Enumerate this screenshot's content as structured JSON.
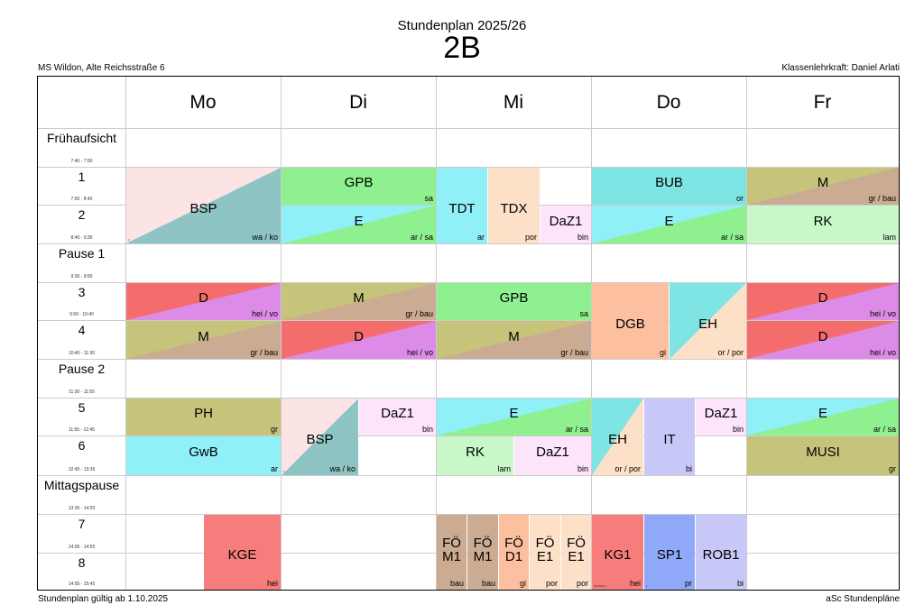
{
  "header": {
    "title_small": "Stundenplan 2025/26",
    "title_big": "2B",
    "school": "MS Wildon, Alte Reichsstraße 6",
    "teacher": "Klassenlehrkraft: Daniel Arlati"
  },
  "footer": {
    "left": "Stundenplan gültig ab 1.10.2025",
    "right": "aSc Stundenpläne"
  },
  "days": [
    "Mo",
    "Di",
    "Mi",
    "Do",
    "Fr"
  ],
  "rows": [
    {
      "label": "Frühaufsicht",
      "time": "7:40 - 7:50"
    },
    {
      "label": "1",
      "time": "7:50 - 8:40"
    },
    {
      "label": "2",
      "time": "8:40 - 9:30"
    },
    {
      "label": "Pause 1",
      "time": "9:30 - 9:50"
    },
    {
      "label": "3",
      "time": "9:50 - 10:40"
    },
    {
      "label": "4",
      "time": "10:40 - 11:30"
    },
    {
      "label": "Pause 2",
      "time": "11:30 - 11:55"
    },
    {
      "label": "5",
      "time": "11:55 - 12:45"
    },
    {
      "label": "6",
      "time": "12:45 - 13:35"
    },
    {
      "label": "Mittagspause",
      "time": "13:35 - 14:20"
    },
    {
      "label": "7",
      "time": "14:05 - 14:55"
    },
    {
      "label": "8",
      "time": "14:55 - 15:45"
    }
  ],
  "lessons": {
    "mo_bsp": {
      "subject": "BSP",
      "teacher": "wa / ko",
      "tiny": "1",
      "colors": [
        "#fce4e4",
        "#8fc4c4"
      ]
    },
    "mo_d3": {
      "subject": "D",
      "teacher": "hei / vo",
      "colors": [
        "#f56c6c",
        "#dc8ce6"
      ]
    },
    "mo_m4": {
      "subject": "M",
      "teacher": "gr / bau",
      "colors": [
        "#c6c47a",
        "#cbab92"
      ]
    },
    "mo_ph": {
      "subject": "PH",
      "teacher": "gr",
      "colors": [
        "#c6c47a"
      ]
    },
    "mo_gwb": {
      "subject": "GwB",
      "teacher": "ar",
      "colors": [
        "#8ff0f8"
      ]
    },
    "mo_kge": {
      "subject": "KGE",
      "teacher": "hei",
      "colors": [
        "#f77c7c"
      ]
    },
    "di_gpb": {
      "subject": "GPB",
      "teacher": "sa",
      "colors": [
        "#8ef08e"
      ]
    },
    "di_e2": {
      "subject": "E",
      "teacher": "ar / sa",
      "colors": [
        "#8ff0f8",
        "#8ef08e"
      ]
    },
    "di_m3": {
      "subject": "M",
      "teacher": "gr / bau",
      "colors": [
        "#c6c47a",
        "#cbab92"
      ]
    },
    "di_d4": {
      "subject": "D",
      "teacher": "hei / vo",
      "colors": [
        "#f56c6c",
        "#dc8ce6"
      ]
    },
    "di_bsp": {
      "subject": "BSP",
      "teacher": "wa / ko",
      "tiny": "1",
      "colors": [
        "#fce4e4",
        "#8fc4c4"
      ]
    },
    "di_daz": {
      "subject": "DaZ1",
      "teacher": "bin",
      "colors": [
        "#fde4fa"
      ]
    },
    "mi_tdt": {
      "subject": "TDT",
      "teacher": "ar",
      "colors": [
        "#8ff0f8"
      ]
    },
    "mi_tdx": {
      "subject": "TDX",
      "teacher": "por",
      "colors": [
        "#fde0c8"
      ]
    },
    "mi_daz2": {
      "subject": "DaZ1",
      "teacher": "bin",
      "colors": [
        "#fde4fa"
      ]
    },
    "mi_gpb": {
      "subject": "GPB",
      "teacher": "sa",
      "colors": [
        "#8ef08e"
      ]
    },
    "mi_m4": {
      "subject": "M",
      "teacher": "gr / bau",
      "colors": [
        "#c6c47a",
        "#cbab92"
      ]
    },
    "mi_e5": {
      "subject": "E",
      "teacher": "ar / sa",
      "colors": [
        "#8ff0f8",
        "#8ef08e"
      ]
    },
    "mi_rk": {
      "subject": "RK",
      "teacher": "lam",
      "colors": [
        "#c8f8c8"
      ]
    },
    "mi_daz6": {
      "subject": "DaZ1",
      "teacher": "bin",
      "colors": [
        "#fde4fa"
      ]
    },
    "mi_fom1a": {
      "line1": "FÖ",
      "line2": "M1",
      "teacher": "bau",
      "colors": [
        "#cbab92"
      ]
    },
    "mi_fom1b": {
      "line1": "FÖ",
      "line2": "M1",
      "teacher": "bau",
      "colors": [
        "#cbab92"
      ]
    },
    "mi_fod1": {
      "line1": "FÖ",
      "line2": "D1",
      "teacher": "gi",
      "colors": [
        "#fcc0a0"
      ]
    },
    "mi_foe1a": {
      "line1": "FÖ",
      "line2": "E1",
      "teacher": "por",
      "colors": [
        "#fde0c8"
      ]
    },
    "mi_foe1b": {
      "line1": "FÖ",
      "line2": "E1",
      "teacher": "por",
      "colors": [
        "#fde0c8"
      ]
    },
    "do_bub": {
      "subject": "BUB",
      "teacher": "or",
      "colors": [
        "#7ee4e4"
      ]
    },
    "do_e2": {
      "subject": "E",
      "teacher": "ar / sa",
      "colors": [
        "#8ff0f8",
        "#8ef08e"
      ]
    },
    "do_dgb": {
      "subject": "DGB",
      "teacher": "gi",
      "colors": [
        "#fcc0a0"
      ]
    },
    "do_eh": {
      "subject": "EH",
      "teacher": "or / por",
      "colors": [
        "#7ee4e4",
        "#fde0c8"
      ]
    },
    "do_eh56": {
      "subject": "EH",
      "teacher": "or / por",
      "colors": [
        "#7ee4e4",
        "#fde0c8"
      ]
    },
    "do_it": {
      "subject": "IT",
      "teacher": "bi",
      "colors": [
        "#c8c8f8"
      ]
    },
    "do_daz": {
      "subject": "DaZ1",
      "teacher": "bin",
      "colors": [
        "#fde4fa"
      ]
    },
    "do_kg1": {
      "subject": "KG1",
      "teacher": "hei",
      "tiny": "0000000 A",
      "colors": [
        "#f77c7c"
      ]
    },
    "do_sp1": {
      "subject": "SP1",
      "teacher": "pr",
      "tiny": "1",
      "colors": [
        "#8fa8f8"
      ]
    },
    "do_rob1": {
      "subject": "ROB1",
      "teacher": "bi",
      "colors": [
        "#c8c8f8"
      ]
    },
    "fr_m1": {
      "subject": "M",
      "teacher": "gr / bau",
      "colors": [
        "#c6c47a",
        "#cbab92"
      ]
    },
    "fr_rk": {
      "subject": "RK",
      "teacher": "lam",
      "colors": [
        "#c8f8c8"
      ]
    },
    "fr_d3": {
      "subject": "D",
      "teacher": "hei / vo",
      "colors": [
        "#f56c6c",
        "#dc8ce6"
      ]
    },
    "fr_d4": {
      "subject": "D",
      "teacher": "hei / vo",
      "colors": [
        "#f56c6c",
        "#dc8ce6"
      ]
    },
    "fr_e5": {
      "subject": "E",
      "teacher": "ar / sa",
      "colors": [
        "#8ff0f8",
        "#8ef08e"
      ]
    },
    "fr_musi": {
      "subject": "MUSI",
      "teacher": "gr",
      "colors": [
        "#c6c47a"
      ]
    }
  }
}
